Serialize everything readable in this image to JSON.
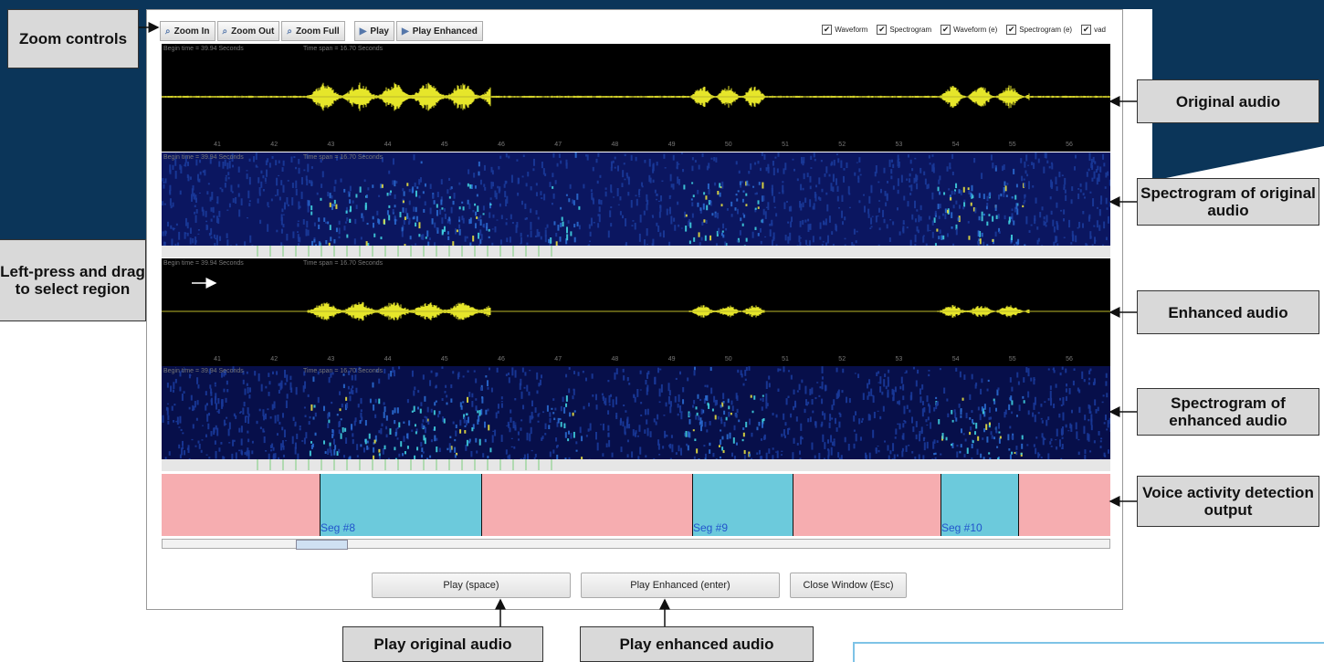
{
  "toolbar": {
    "buttons": [
      "Zoom In",
      "Zoom Out",
      "Zoom Full",
      "Play",
      "Play Enhanced"
    ],
    "checkboxes": [
      "Waveform",
      "Spectrogram",
      "Waveform (e)",
      "Spectrogram (e)",
      "vad"
    ]
  },
  "panel_info": {
    "begin": "Begin time = 39.94 Seconds",
    "span": "Time span = 16.70 Seconds"
  },
  "time_labels": [
    "41",
    "42",
    "43",
    "44",
    "45",
    "46",
    "47",
    "48",
    "49",
    "50",
    "51",
    "52",
    "53",
    "54",
    "55",
    "56"
  ],
  "vad_segments": [
    "Seg #8",
    "Seg #9",
    "Seg #10"
  ],
  "bottom_buttons": [
    "Play (space)",
    "Play Enhanced (enter)",
    "Close Window (Esc)"
  ],
  "callouts": {
    "zoom": "Zoom controls",
    "original": "Original audio",
    "spec_original": "Spectrogram of original audio",
    "select": "Left-press and drag to select region",
    "enhanced": "Enhanced audio",
    "spec_enhanced": "Spectrogram of enhanced audio",
    "vad": "Voice activity detection output",
    "play_original": "Play original audio",
    "play_enhanced": "Play enhanced audio"
  }
}
